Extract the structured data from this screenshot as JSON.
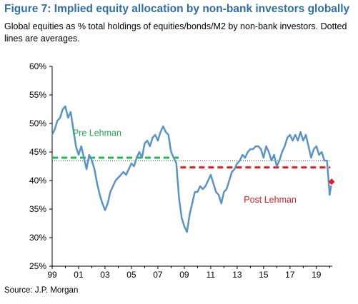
{
  "figure": {
    "title": "Figure 7: Implied equity allocation by non-bank investors globally",
    "subtitle": "Global equities as % total holdings of equities/bonds/M2 by non-bank investors. Dotted lines are averages.",
    "source": "Source: J.P. Morgan"
  },
  "colors": {
    "title": "#2f6fa6",
    "series": "#5b93c3",
    "pre_lehman": "#1ebd4e",
    "post_lehman": "#e02020",
    "pre_lehman_label": "#1aa84a",
    "post_lehman_label": "#d81e1e",
    "average_line": "#333333",
    "axis": "#000000"
  },
  "chart_data": {
    "type": "line",
    "title": "",
    "xlabel": "",
    "ylabel": "",
    "xlim": [
      1999,
      2020.2
    ],
    "ylim": [
      25,
      60
    ],
    "grid": false,
    "x_tick_labels": [
      "99",
      "01",
      "03",
      "05",
      "07",
      "09",
      "11",
      "13",
      "15",
      "17",
      "19"
    ],
    "x_tick_values": [
      1999,
      2001,
      2003,
      2005,
      2007,
      2009,
      2011,
      2013,
      2015,
      2017,
      2019
    ],
    "y_tick_labels": [
      "25%",
      "30%",
      "35%",
      "40%",
      "45%",
      "50%",
      "55%",
      "60%"
    ],
    "y_tick_values": [
      25,
      30,
      35,
      40,
      45,
      50,
      55,
      60
    ],
    "series": [
      {
        "x": [
          1999.0,
          1999.2,
          1999.4,
          1999.6,
          1999.8,
          2000.0,
          2000.2,
          2000.4,
          2000.6,
          2000.8,
          2001.0,
          2001.2,
          2001.4,
          2001.6,
          2001.8,
          2002.0,
          2002.2,
          2002.4,
          2002.6,
          2002.8,
          2003.0,
          2003.2,
          2003.4,
          2003.6,
          2003.8,
          2004.0,
          2004.2,
          2004.4,
          2004.6,
          2004.8,
          2005.0,
          2005.2,
          2005.4,
          2005.6,
          2005.8,
          2006.0,
          2006.2,
          2006.4,
          2006.6,
          2006.8,
          2007.0,
          2007.2,
          2007.4,
          2007.6,
          2007.8,
          2008.0,
          2008.2,
          2008.4,
          2008.6,
          2008.8,
          2009.0,
          2009.2,
          2009.4,
          2009.6,
          2009.8,
          2010.0,
          2010.2,
          2010.4,
          2010.6,
          2010.8,
          2011.0,
          2011.2,
          2011.4,
          2011.6,
          2011.8,
          2012.0,
          2012.2,
          2012.4,
          2012.6,
          2012.8,
          2013.0,
          2013.2,
          2013.4,
          2013.6,
          2013.8,
          2014.0,
          2014.2,
          2014.4,
          2014.6,
          2014.8,
          2015.0,
          2015.2,
          2015.4,
          2015.6,
          2015.8,
          2016.0,
          2016.2,
          2016.4,
          2016.6,
          2016.8,
          2017.0,
          2017.2,
          2017.4,
          2017.6,
          2017.8,
          2018.0,
          2018.2,
          2018.4,
          2018.6,
          2018.8,
          2019.0,
          2019.2,
          2019.4,
          2019.6,
          2019.8,
          2019.9,
          2020.0,
          2020.1
        ],
        "y": [
          48.0,
          49.0,
          50.5,
          51.0,
          52.5,
          53.0,
          51.0,
          52.0,
          49.0,
          46.0,
          44.5,
          46.0,
          44.0,
          42.0,
          44.5,
          43.5,
          42.0,
          39.5,
          37.5,
          36.0,
          34.8,
          36.0,
          38.0,
          39.0,
          40.0,
          40.5,
          41.0,
          41.5,
          41.0,
          42.0,
          43.0,
          42.5,
          44.0,
          45.0,
          44.0,
          46.5,
          47.0,
          46.0,
          47.5,
          48.0,
          47.0,
          48.5,
          49.5,
          48.5,
          48.0,
          45.0,
          44.0,
          43.0,
          37.0,
          33.5,
          32.0,
          31.0,
          34.0,
          36.0,
          38.0,
          38.0,
          39.0,
          38.5,
          39.0,
          40.0,
          41.0,
          39.5,
          38.0,
          37.5,
          36.0,
          38.0,
          38.5,
          40.0,
          41.5,
          42.0,
          43.0,
          43.5,
          44.5,
          44.0,
          45.0,
          45.5,
          45.5,
          46.0,
          46.0,
          45.5,
          44.0,
          46.0,
          45.0,
          43.5,
          44.5,
          42.5,
          43.5,
          45.0,
          46.0,
          47.5,
          48.0,
          47.0,
          48.0,
          47.0,
          48.5,
          47.0,
          48.0,
          46.0,
          44.0,
          45.5,
          46.0,
          44.5,
          45.0,
          43.5,
          43.5,
          40.5,
          37.5,
          39.0
        ]
      }
    ],
    "reference_lines": [
      {
        "label": "Pre Lehman",
        "y": 44.0,
        "x_start": 1999.0,
        "x_end": 2008.7,
        "style": "dashed"
      },
      {
        "label": "Post Lehman",
        "y": 42.3,
        "x_start": 2008.7,
        "x_end": 2020.05,
        "style": "dashed"
      },
      {
        "y": 43.5,
        "x_start": 1999.0,
        "x_end": 2020.1,
        "style": "dotted"
      }
    ],
    "last_point_marker": {
      "x": 2020.15,
      "y": 39.8
    },
    "annotations": [
      {
        "text": "Pre Lehman",
        "x": 2002.4,
        "y": 47.8
      },
      {
        "text": "Post Lehman",
        "x": 2015.5,
        "y": 36.1
      }
    ]
  }
}
